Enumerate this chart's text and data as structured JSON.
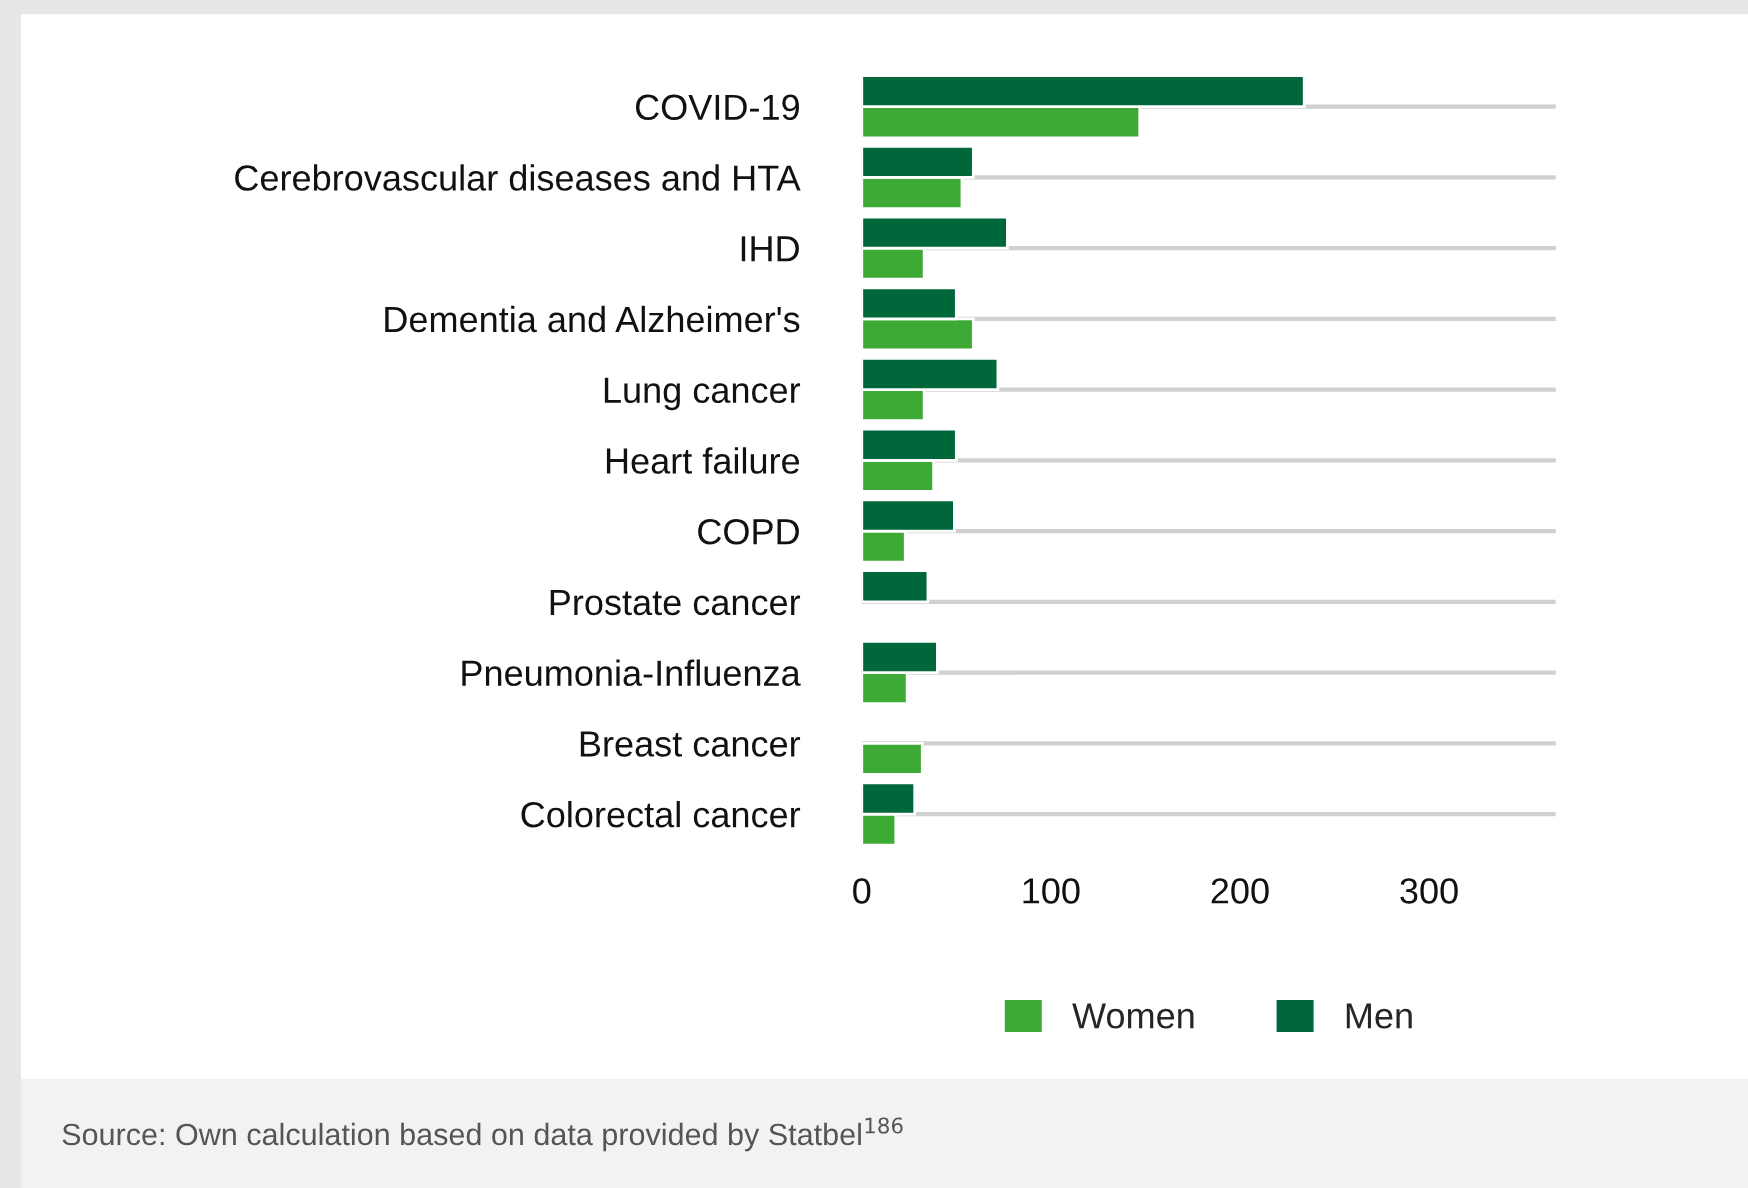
{
  "chart_data": {
    "type": "bar",
    "orientation": "horizontal",
    "categories": [
      "COVID-19",
      "Cerebrovascular diseases and HTA",
      "IHD",
      "Dementia and Alzheimer's",
      "Lung cancer",
      "Heart failure",
      "COPD",
      "Prostate cancer",
      "Pneumonia-Influenza",
      "Breast cancer",
      "Colorectal cancer"
    ],
    "series": [
      {
        "name": "Women",
        "color": "#3daa35",
        "values": [
          147,
          53,
          33,
          59,
          33,
          38,
          23,
          null,
          24,
          32,
          18
        ]
      },
      {
        "name": "Men",
        "color": "#00673a",
        "values": [
          234,
          59,
          77,
          50,
          72,
          50,
          49,
          35,
          40,
          null,
          28
        ]
      }
    ],
    "xlim": [
      0,
      367
    ],
    "xticks": [
      0,
      100,
      200,
      300
    ],
    "grid": "y",
    "legend": "bottom",
    "annotations": [
      "Source: Own calculation based on data provided by Statbel$^{186}$"
    ]
  }
}
